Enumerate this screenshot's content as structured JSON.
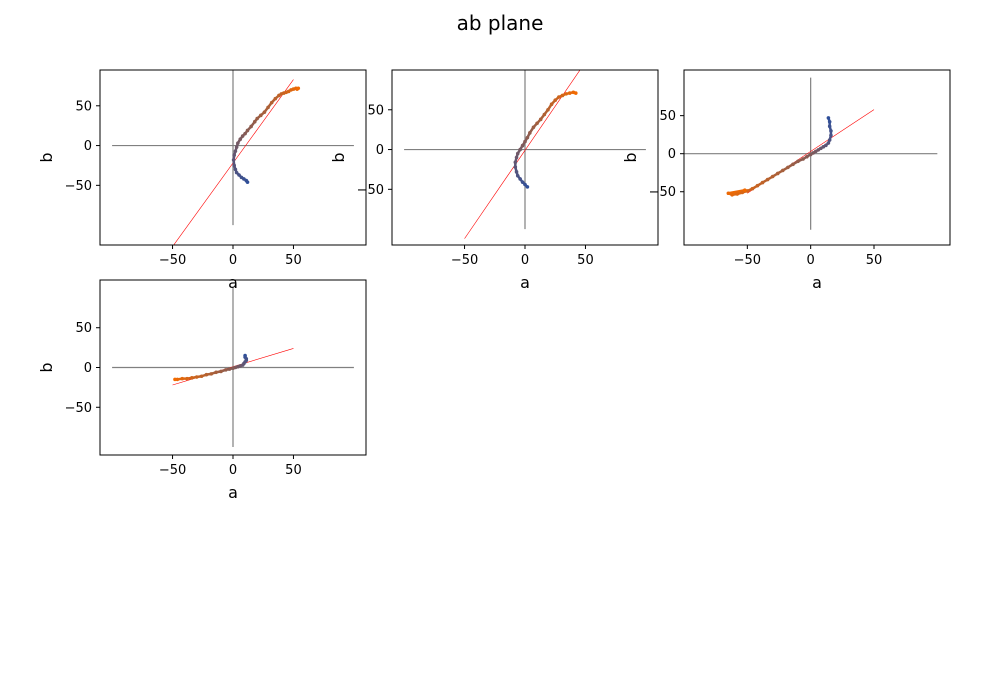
{
  "figure": {
    "title": "ab plane"
  },
  "colors": {
    "start": "#2f4f9a",
    "end": "#f26a00",
    "fit": "#ff0000",
    "zero_lines": "#808080"
  },
  "chart_data": [
    {
      "type": "scatter",
      "xlabel": "a",
      "ylabel": "b",
      "xlim": [
        -110,
        110
      ],
      "ylim": [
        -125,
        95
      ],
      "xticks": [
        "-50",
        "0",
        "50"
      ],
      "yticks": [
        "50",
        "0",
        "-50"
      ],
      "fit_line": {
        "x": [
          -50,
          50
        ],
        "y": [
          -127,
          83
        ]
      },
      "series": [
        {
          "x": [
            12,
            11,
            9,
            7,
            5,
            3,
            2,
            1,
            0.5,
            1,
            2,
            3,
            4,
            6,
            8,
            10,
            12,
            15,
            18,
            20,
            23,
            26,
            29,
            32,
            35,
            38,
            40,
            42,
            44,
            46,
            48,
            50,
            52,
            53,
            54
          ],
          "y": [
            -46,
            -44,
            -42,
            -40,
            -37,
            -34,
            -30,
            -25,
            -18,
            -12,
            -7,
            -2,
            3,
            8,
            12,
            15,
            19,
            24,
            30,
            34,
            38,
            42,
            48,
            54,
            59,
            63,
            65,
            66,
            67,
            68,
            70,
            71,
            72,
            71,
            72
          ]
        }
      ]
    },
    {
      "type": "scatter",
      "xlabel": "a",
      "ylabel": "b",
      "xlim": [
        -110,
        110
      ],
      "ylim": [
        -120,
        100
      ],
      "xticks": [
        "-50",
        "0",
        "50"
      ],
      "yticks": [
        "50",
        "0",
        "-50"
      ],
      "fit_line": {
        "x": [
          -50,
          50
        ],
        "y": [
          -112,
          110
        ]
      },
      "series": [
        {
          "x": [
            2,
            0,
            -2,
            -4,
            -6,
            -7,
            -8,
            -8,
            -7,
            -6,
            -4,
            -2,
            0,
            2,
            4,
            7,
            10,
            13,
            16,
            19,
            22,
            25,
            28,
            31,
            34,
            37,
            40,
            42
          ],
          "y": [
            -47,
            -44,
            -41,
            -37,
            -33,
            -28,
            -22,
            -16,
            -10,
            -5,
            0,
            5,
            10,
            15,
            21,
            28,
            33,
            38,
            44,
            50,
            57,
            62,
            66,
            68,
            70,
            71,
            72,
            71
          ]
        }
      ]
    },
    {
      "type": "scatter",
      "xlabel": "a",
      "ylabel": "b",
      "xlim": [
        -100,
        110
      ],
      "ylim": [
        -120,
        110
      ],
      "xticks": [
        "-50",
        "0",
        "50"
      ],
      "yticks": [
        "50",
        "0",
        "-50"
      ],
      "fit_line": {
        "x": [
          -50,
          50
        ],
        "y": [
          -52,
          58
        ]
      },
      "series": [
        {
          "x": [
            14,
            15,
            15,
            16,
            16,
            15,
            14,
            12,
            10,
            8,
            6,
            4,
            2,
            0,
            -3,
            -6,
            -10,
            -14,
            -18,
            -22,
            -26,
            -30,
            -34,
            -38,
            -42,
            -46,
            -50,
            -54,
            -58,
            -62,
            -65,
            -52
          ],
          "y": [
            47,
            42,
            36,
            30,
            24,
            18,
            14,
            11,
            9,
            7,
            5,
            3,
            1,
            -1,
            -4,
            -7,
            -10,
            -14,
            -18,
            -22,
            -26,
            -30,
            -34,
            -38,
            -42,
            -46,
            -49,
            -51,
            -53,
            -54,
            -52,
            -48
          ]
        }
      ]
    },
    {
      "type": "scatter",
      "xlabel": "a",
      "ylabel": "b",
      "xlim": [
        -110,
        110
      ],
      "ylim": [
        -110,
        110
      ],
      "xticks": [
        "-50",
        "0",
        "50"
      ],
      "yticks": [
        "50",
        "0",
        "-50"
      ],
      "fit_line": {
        "x": [
          -50,
          50
        ],
        "y": [
          -22,
          24
        ]
      },
      "series": [
        {
          "x": [
            10,
            10,
            11,
            11,
            10,
            9,
            8,
            6,
            4,
            2,
            0,
            -3,
            -6,
            -10,
            -14,
            -18,
            -22,
            -26,
            -30,
            -34,
            -38,
            -42,
            -46,
            -48
          ],
          "y": [
            15,
            13,
            11,
            9,
            7,
            5,
            3,
            2,
            1,
            0,
            -1,
            -2,
            -3,
            -5,
            -6,
            -8,
            -9,
            -11,
            -12,
            -13,
            -14,
            -14,
            -15,
            -15
          ]
        }
      ]
    }
  ]
}
